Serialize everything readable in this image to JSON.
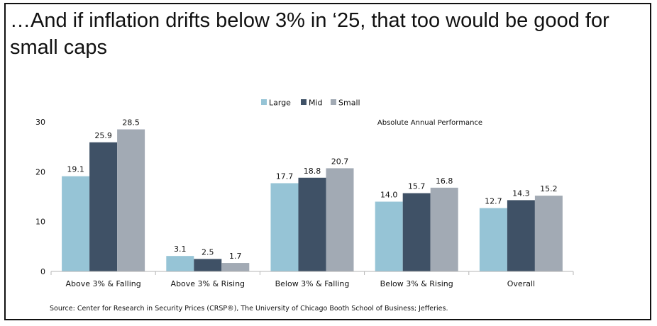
{
  "title": "…And if inflation drifts below 3% in ‘25, that too would be good for small caps",
  "source": "Source: Center for Research in Security Prices (CRSP®), The University of Chicago Booth School of Business; Jefferies.",
  "chart_data": {
    "type": "bar",
    "annotation": "Absolute Annual Performance",
    "categories": [
      "Above 3% & Falling",
      "Above 3% & Rising",
      "Below 3% & Falling",
      "Below 3% & Rising",
      "Overall"
    ],
    "series": [
      {
        "name": "Large",
        "color": "#96c4d6",
        "values": [
          19.1,
          3.1,
          17.7,
          14.0,
          12.7
        ]
      },
      {
        "name": "Mid",
        "color": "#3f5166",
        "values": [
          25.9,
          2.5,
          18.8,
          15.7,
          14.3
        ]
      },
      {
        "name": "Small",
        "color": "#a2aab4",
        "values": [
          28.5,
          1.7,
          20.7,
          16.8,
          15.2
        ]
      }
    ],
    "value_labels": [
      [
        "19.1",
        "3.1",
        "17.7",
        "14.0",
        "12.7"
      ],
      [
        "25.9",
        "2.5",
        "18.8",
        "15.7",
        "14.3"
      ],
      [
        "28.5",
        "1.7",
        "20.7",
        "16.8",
        "15.2"
      ]
    ],
    "yticks": [
      0,
      10,
      20,
      30
    ],
    "ylim": [
      0,
      30
    ],
    "legend_position": "top",
    "grid": false
  }
}
